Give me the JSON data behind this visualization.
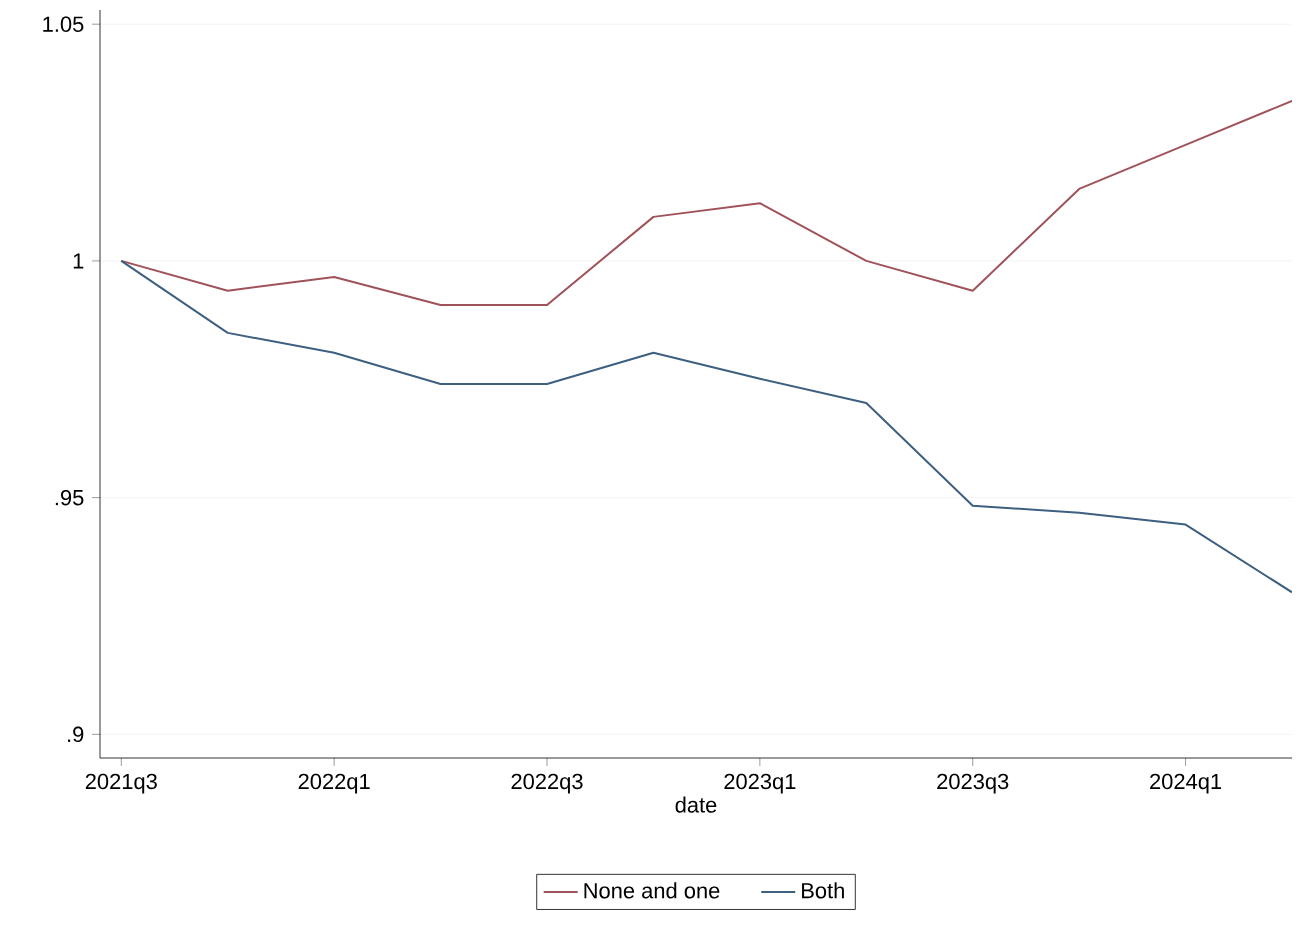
{
  "chart_data": {
    "type": "line",
    "xlabel": "date",
    "categories": [
      "2021q3",
      null,
      "2022q1",
      null,
      "2022q3",
      null,
      "2023q1",
      null,
      "2023q3",
      null,
      "2024q1",
      null
    ],
    "series": [
      {
        "name": "None and one",
        "color": "#a0525a",
        "values": [
          1.0,
          0.9937,
          0.9966,
          0.9907,
          0.9907,
          1.0093,
          1.0122,
          1.0,
          0.9937,
          1.0152,
          1.0245,
          1.0338
        ]
      },
      {
        "name": "Both",
        "color": "#3d5f80",
        "values": [
          1.0,
          0.9848,
          0.9806,
          0.974,
          0.974,
          0.9806,
          0.9751,
          0.97,
          0.9483,
          0.9468,
          0.9443,
          0.93
        ]
      }
    ],
    "ylim": [
      0.895,
      1.053
    ],
    "yticks": [
      {
        "value": 0.9,
        "label": ".9"
      },
      {
        "value": 0.95,
        "label": ".95"
      },
      1,
      1.05
    ],
    "grid": "y",
    "legend": "bottom",
    "marker": "none",
    "line_style": "solid"
  }
}
